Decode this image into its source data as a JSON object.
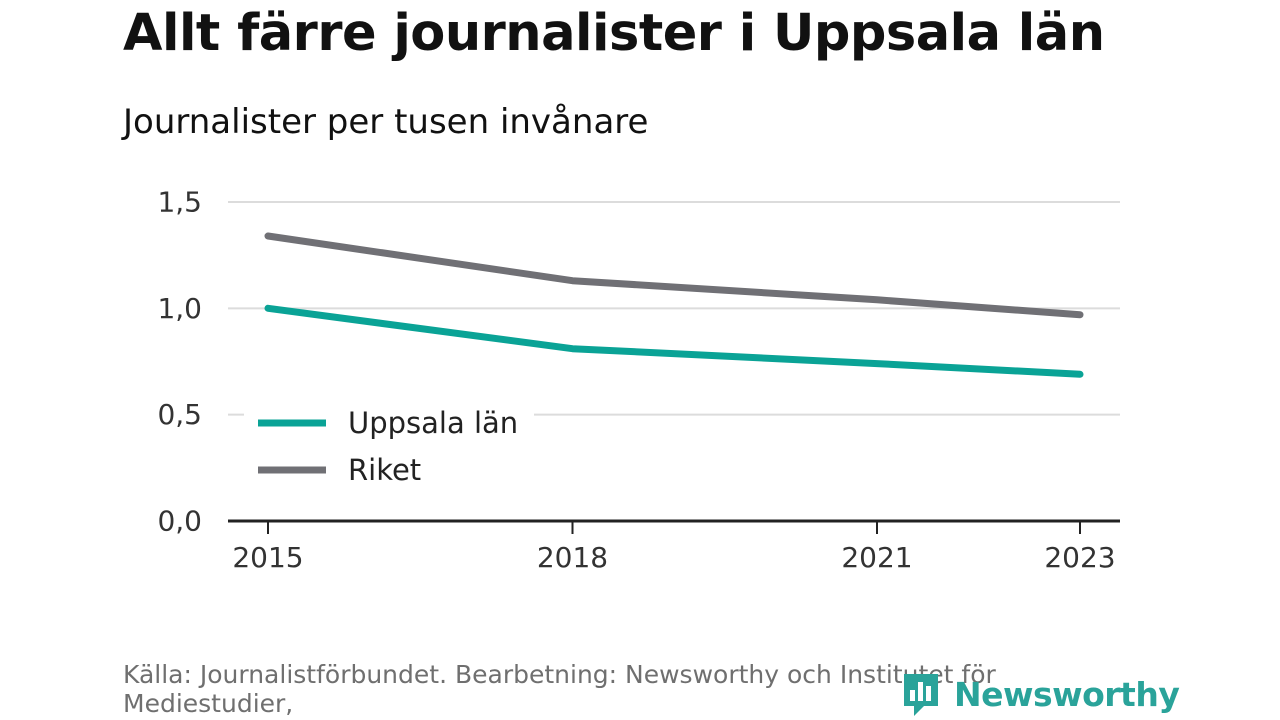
{
  "title": "Allt färre journalister i Uppsala län",
  "subtitle": "Journalister per tusen invånare",
  "source": "Källa: Journalistförbundet. Bearbetning: Newsworthy och Institutet för Mediestudier,",
  "brand": {
    "name": "Newsworthy",
    "icon": "newsworthy-logo-icon",
    "color": "#2aa39a"
  },
  "chart_data": {
    "type": "line",
    "title": "Allt färre journalister i Uppsala län",
    "ylabel": "Journalister per tusen invånare",
    "xlabel": "",
    "x": [
      2015,
      2018,
      2021,
      2023
    ],
    "xticks": [
      "2015",
      "2018",
      "2021",
      "2023"
    ],
    "xlim": [
      2015,
      2023
    ],
    "ylim": [
      0,
      1.5
    ],
    "yticks": [
      "0,0",
      "0,5",
      "1,0",
      "1,5"
    ],
    "ytick_values": [
      0,
      0.5,
      1.0,
      1.5
    ],
    "grid": true,
    "legend_position": "bottom-left",
    "series": [
      {
        "name": "Uppsala län",
        "color": "#0aa396",
        "values": [
          1.0,
          0.81,
          0.74,
          0.69
        ]
      },
      {
        "name": "Riket",
        "color": "#707075",
        "values": [
          1.34,
          1.13,
          1.04,
          0.97
        ]
      }
    ]
  }
}
